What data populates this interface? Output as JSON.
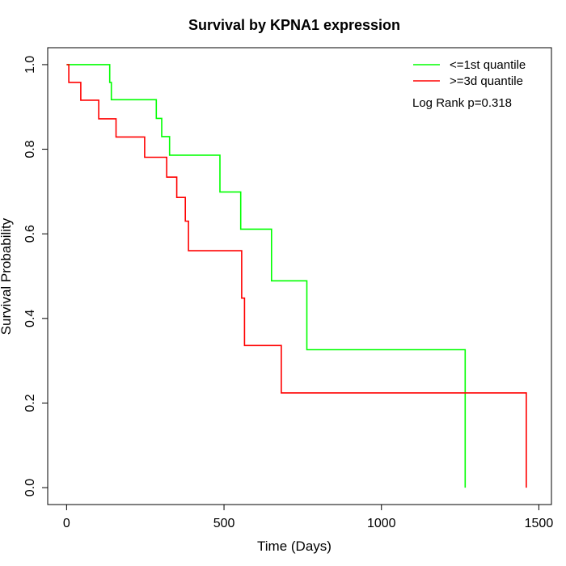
{
  "chart_data": {
    "type": "line",
    "title": "Survival by KPNA1 expression",
    "xlabel": "Time (Days)",
    "ylabel": "Survival Probability",
    "xlim": [
      -60,
      1540
    ],
    "ylim": [
      -0.04,
      1.04
    ],
    "x_ticks": [
      0,
      500,
      1000,
      1500
    ],
    "y_ticks": [
      0.0,
      0.2,
      0.4,
      0.6,
      0.8,
      1.0
    ],
    "x_tick_labels": [
      "0",
      "500",
      "1000",
      "1500"
    ],
    "y_tick_labels": [
      "0.0",
      "0.2",
      "0.4",
      "0.6",
      "0.8",
      "1.0"
    ],
    "legend_position": "top-right",
    "annotation": "Log Rank p=0.318",
    "grid": false,
    "series": [
      {
        "name": "<=1st quantile",
        "color": "#00ff00",
        "points": [
          [
            0,
            1.0
          ],
          [
            137,
            1.0
          ],
          [
            137,
            0.958
          ],
          [
            142,
            0.958
          ],
          [
            142,
            0.917
          ],
          [
            285,
            0.917
          ],
          [
            285,
            0.873
          ],
          [
            302,
            0.873
          ],
          [
            302,
            0.83
          ],
          [
            327,
            0.83
          ],
          [
            327,
            0.786
          ],
          [
            487,
            0.786
          ],
          [
            487,
            0.699
          ],
          [
            553,
            0.699
          ],
          [
            553,
            0.611
          ],
          [
            651,
            0.611
          ],
          [
            651,
            0.489
          ],
          [
            763,
            0.489
          ],
          [
            763,
            0.326
          ],
          [
            1266,
            0.326
          ],
          [
            1266,
            0.0
          ]
        ]
      },
      {
        "name": ">=3d quantile",
        "color": "#ff0000",
        "points": [
          [
            0,
            1.0
          ],
          [
            7,
            1.0
          ],
          [
            7,
            0.958
          ],
          [
            45,
            0.958
          ],
          [
            45,
            0.916
          ],
          [
            102,
            0.916
          ],
          [
            102,
            0.872
          ],
          [
            157,
            0.872
          ],
          [
            157,
            0.829
          ],
          [
            248,
            0.829
          ],
          [
            248,
            0.781
          ],
          [
            318,
            0.781
          ],
          [
            318,
            0.734
          ],
          [
            350,
            0.734
          ],
          [
            350,
            0.686
          ],
          [
            377,
            0.686
          ],
          [
            377,
            0.63
          ],
          [
            387,
            0.63
          ],
          [
            387,
            0.56
          ],
          [
            556,
            0.56
          ],
          [
            556,
            0.448
          ],
          [
            565,
            0.448
          ],
          [
            565,
            0.336
          ],
          [
            682,
            0.336
          ],
          [
            682,
            0.224
          ],
          [
            1460,
            0.224
          ],
          [
            1460,
            0.0
          ]
        ]
      }
    ]
  }
}
